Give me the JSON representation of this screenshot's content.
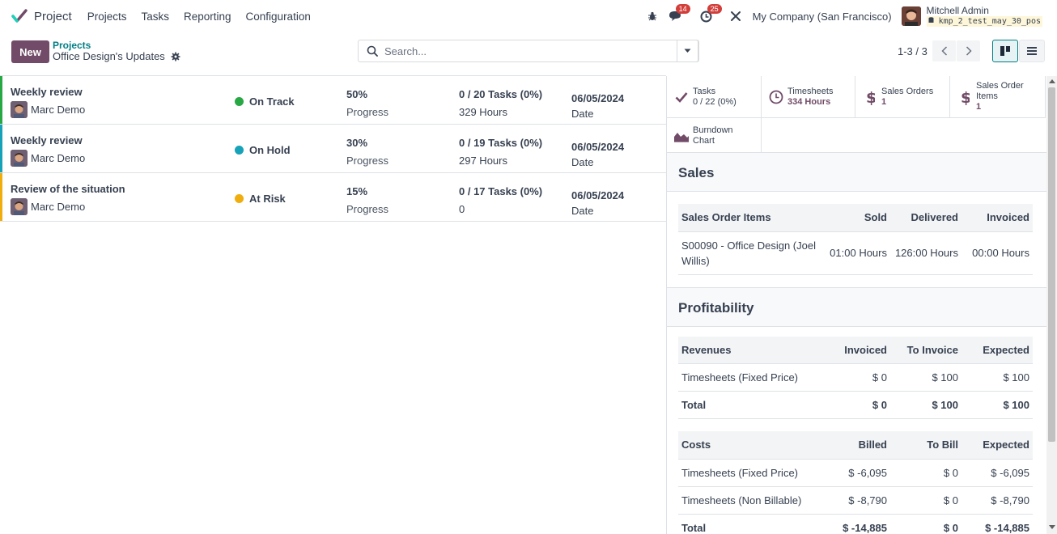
{
  "navbar": {
    "app_name": "Project",
    "menu": [
      "Projects",
      "Tasks",
      "Reporting",
      "Configuration"
    ],
    "messages_count": "14",
    "activities_count": "25",
    "company": "My Company (San Francisco)",
    "user_name": "Mitchell Admin",
    "database": "kmp_2_test_may_30_pos"
  },
  "control_panel": {
    "new_label": "New",
    "breadcrumb_parent": "Projects",
    "breadcrumb_current": "Office Design's Updates",
    "search_placeholder": "Search...",
    "pager": "1-3 / 3"
  },
  "updates": [
    {
      "title": "Weekly review",
      "user": "Marc Demo",
      "status": "On Track",
      "status_color": "#28a745",
      "progress": "50%",
      "progress_label": "Progress",
      "tasks": "0 / 20 Tasks (0%)",
      "hours": "329 Hours",
      "date": "06/05/2024",
      "date_label": "Date"
    },
    {
      "title": "Weekly review",
      "user": "Marc Demo",
      "status": "On Hold",
      "status_color": "#17a2b8",
      "progress": "30%",
      "progress_label": "Progress",
      "tasks": "0 / 19 Tasks (0%)",
      "hours": "297 Hours",
      "date": "06/05/2024",
      "date_label": "Date"
    },
    {
      "title": "Review of the situation",
      "user": "Marc Demo",
      "status": "At Risk",
      "status_color": "#f0ad0e",
      "progress": "15%",
      "progress_label": "Progress",
      "tasks": "0 / 17 Tasks (0%)",
      "hours": "0",
      "date": "06/05/2024",
      "date_label": "Date"
    }
  ],
  "stats": {
    "tasks_label": "Tasks",
    "tasks_value": "0 / 22 (0%)",
    "timesheets_label": "Timesheets",
    "timesheets_value": "334 Hours",
    "sales_orders_label": "Sales Orders",
    "sales_orders_value": "1",
    "sales_order_items_label": "Sales Order Items",
    "sales_order_items_value": "1",
    "burndown_label": "Burndown Chart"
  },
  "sales": {
    "title": "Sales",
    "headers": [
      "Sales Order Items",
      "Sold",
      "Delivered",
      "Invoiced"
    ],
    "rows": [
      {
        "item": "S00090 - Office Design (Joel Willis)",
        "sold": "01:00 Hours",
        "delivered": "126:00 Hours",
        "invoiced": "00:00 Hours"
      }
    ]
  },
  "profitability": {
    "title": "Profitability",
    "revenues_headers": [
      "Revenues",
      "Invoiced",
      "To Invoice",
      "Expected"
    ],
    "revenues_rows": [
      {
        "name": "Timesheets (Fixed Price)",
        "a": "$ 0",
        "b": "$ 100",
        "c": "$ 100"
      }
    ],
    "revenues_total": {
      "name": "Total",
      "a": "$ 0",
      "b": "$ 100",
      "c": "$ 100"
    },
    "costs_headers": [
      "Costs",
      "Billed",
      "To Bill",
      "Expected"
    ],
    "costs_rows": [
      {
        "name": "Timesheets (Fixed Price)",
        "a": "$ -6,095",
        "b": "$ 0",
        "c": "$ -6,095"
      },
      {
        "name": "Timesheets (Non Billable)",
        "a": "$ -8,790",
        "b": "$ 0",
        "c": "$ -8,790"
      }
    ],
    "costs_total": {
      "name": "Total",
      "a": "$ -14,885",
      "b": "$ 0",
      "c": "$ -14,885"
    }
  },
  "colors": {
    "brand": "#714b67",
    "link": "#017e84"
  }
}
